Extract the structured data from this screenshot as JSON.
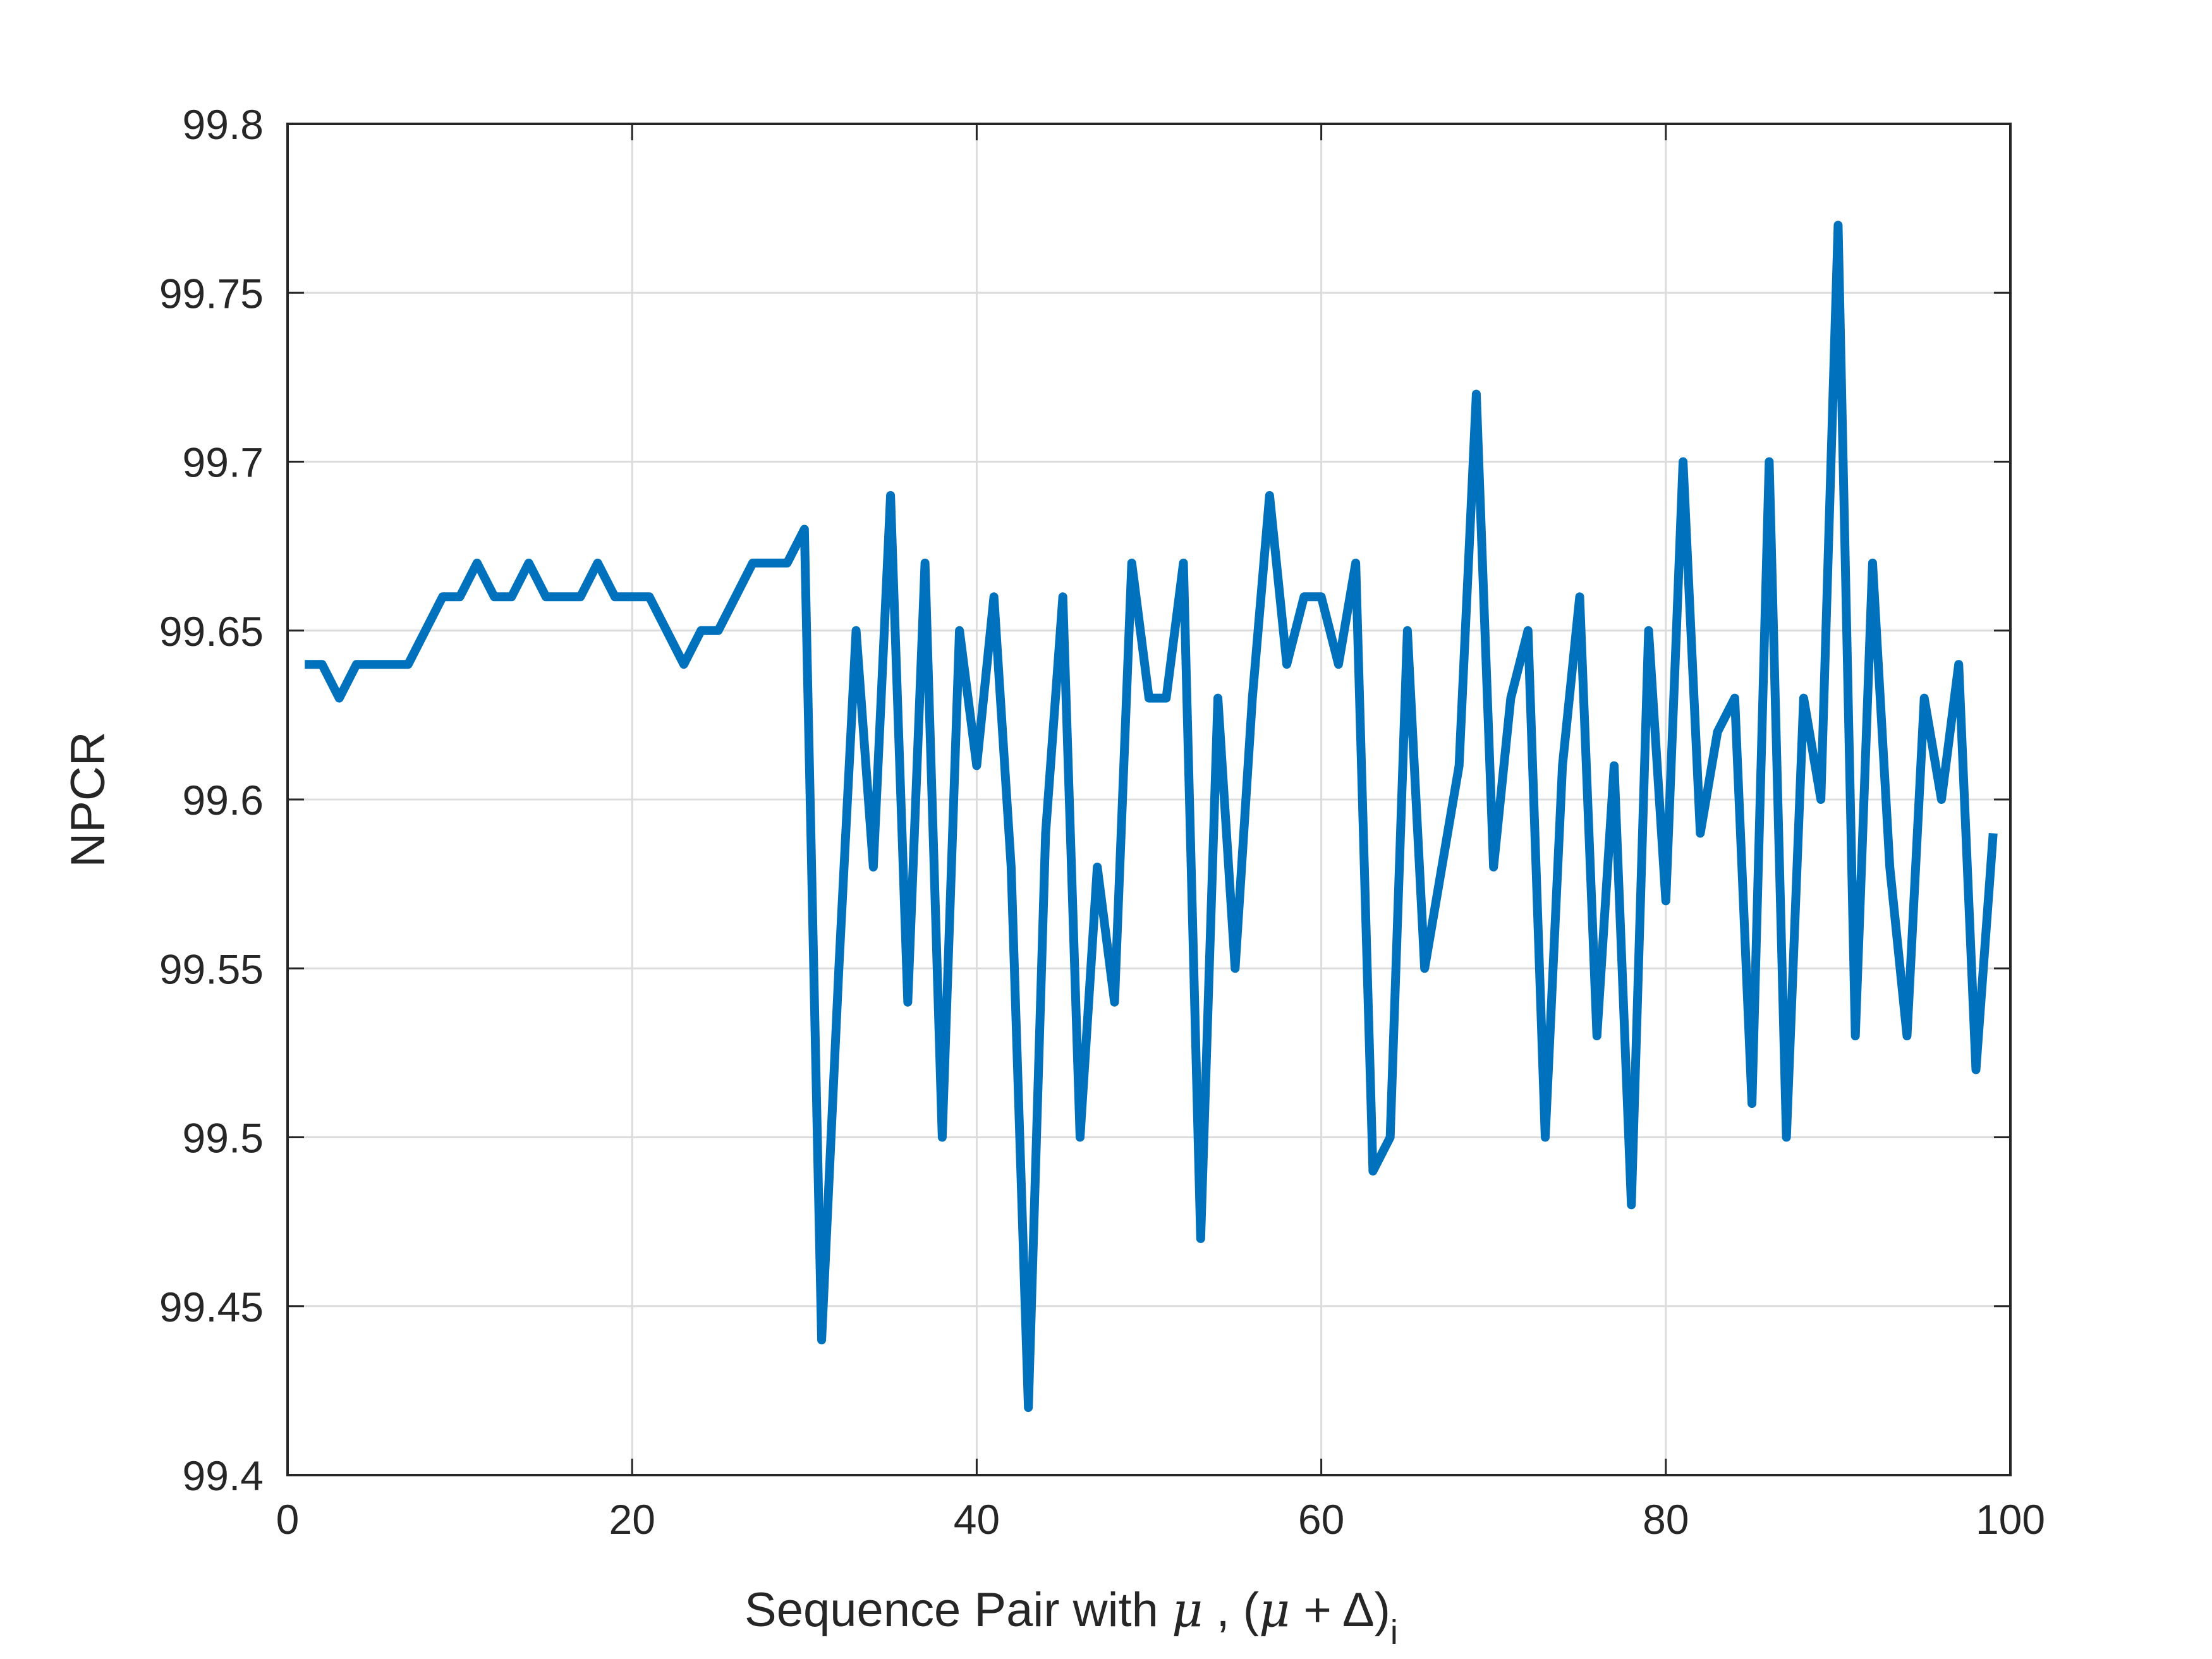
{
  "chart_data": {
    "type": "line",
    "title": "",
    "xlabel": {
      "prefix": "Sequence Pair with ",
      "mu1": "μ",
      "middle": " , (",
      "mu2": "μ",
      "plus": " + ",
      "delta": "Δ",
      "close": ")",
      "subscript": "i"
    },
    "ylabel": "NPCR",
    "xlim": [
      0,
      100
    ],
    "ylim": [
      99.4,
      99.8
    ],
    "xticks": [
      0,
      20,
      40,
      60,
      80,
      100
    ],
    "xtick_labels": [
      "0",
      "20",
      "40",
      "60",
      "80",
      "100"
    ],
    "yticks": [
      99.4,
      99.45,
      99.5,
      99.55,
      99.6,
      99.65,
      99.7,
      99.75,
      99.8
    ],
    "ytick_labels": [
      "99.4",
      "99.45",
      "99.5",
      "99.55",
      "99.6",
      "99.65",
      "99.7",
      "99.75",
      "99.8"
    ],
    "grid": true,
    "line_color": "#0072BD",
    "series": [
      {
        "x": [
          1,
          2,
          3,
          4,
          5,
          6,
          7,
          8,
          9,
          10,
          11,
          12,
          13,
          14,
          15,
          16,
          17,
          18,
          19,
          20,
          21,
          22,
          23,
          24,
          25,
          26,
          27,
          28,
          29,
          30,
          31,
          32,
          33,
          34,
          35,
          36,
          37,
          38,
          39,
          40,
          41,
          42,
          43,
          44,
          45,
          46,
          47,
          48,
          49,
          50,
          51,
          52,
          53,
          54,
          55,
          56,
          57,
          58,
          59,
          60,
          61,
          62,
          63,
          64,
          65,
          66,
          67,
          68,
          69,
          70,
          71,
          72,
          73,
          74,
          75,
          76,
          77,
          78,
          79,
          80,
          81,
          82,
          83,
          84,
          85,
          86,
          87,
          88,
          89,
          90,
          91,
          92,
          93,
          94,
          95,
          96,
          97,
          98,
          99
        ],
        "values": [
          99.64,
          99.64,
          99.63,
          99.64,
          99.64,
          99.64,
          99.64,
          99.65,
          99.66,
          99.66,
          99.67,
          99.66,
          99.66,
          99.67,
          99.66,
          99.66,
          99.66,
          99.67,
          99.66,
          99.66,
          99.66,
          99.65,
          99.64,
          99.65,
          99.65,
          99.66,
          99.67,
          99.67,
          99.67,
          99.68,
          99.44,
          99.55,
          99.65,
          99.58,
          99.69,
          99.54,
          99.67,
          99.5,
          99.65,
          99.61,
          99.66,
          99.58,
          99.42,
          99.59,
          99.66,
          99.5,
          99.58,
          99.54,
          99.67,
          99.63,
          99.63,
          99.67,
          99.47,
          99.63,
          99.55,
          99.63,
          99.69,
          99.64,
          99.66,
          99.66,
          99.64,
          99.67,
          99.49,
          99.5,
          99.65,
          99.55,
          99.58,
          99.61,
          99.72,
          99.58,
          99.63,
          99.65,
          99.5,
          99.61,
          99.66,
          99.53,
          99.61,
          99.48,
          99.65,
          99.57,
          99.7,
          99.59,
          99.62,
          99.63,
          99.51,
          99.7,
          99.5,
          99.63,
          99.6,
          99.77,
          99.53,
          99.67,
          99.58,
          99.53,
          99.63,
          99.6,
          99.64,
          99.52,
          99.59
        ]
      }
    ]
  }
}
